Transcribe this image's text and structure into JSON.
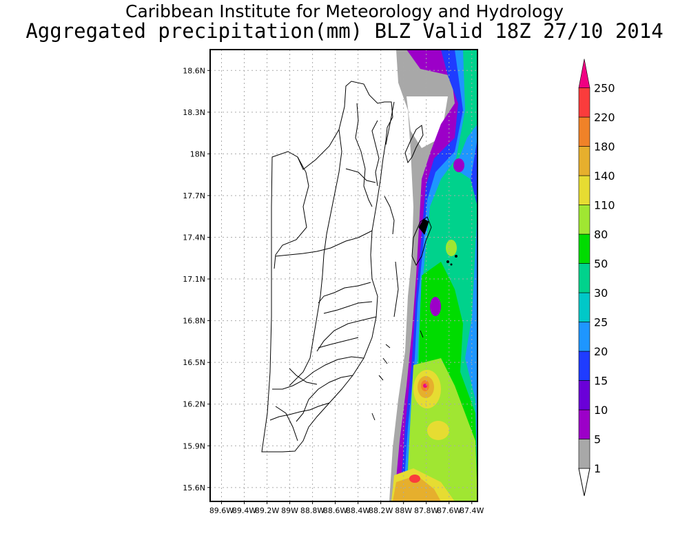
{
  "header": {
    "title": "Caribbean Institute for Meteorology and Hydrology",
    "subtitle": "Aggregated precipitation(mm) BLZ Valid 18Z 27/10 2014"
  },
  "map": {
    "region": "Belize",
    "lat_range": [
      15.5,
      18.75
    ],
    "lon_range": [
      -89.7,
      -87.35
    ],
    "lat_ticks": [
      "18.6N",
      "18.3N",
      "18N",
      "17.7N",
      "17.4N",
      "17.1N",
      "16.8N",
      "16.5N",
      "16.2N",
      "15.9N",
      "15.6N"
    ],
    "lon_ticks": [
      "89.6W",
      "89.4W",
      "89.2W",
      "89W",
      "88.8W",
      "88.6W",
      "88.4W",
      "88.2W",
      "88W",
      "87.8W",
      "87.6W",
      "87.4W"
    ],
    "grid": true
  },
  "colorbar": {
    "levels": [
      "1",
      "5",
      "10",
      "15",
      "20",
      "25",
      "30",
      "50",
      "80",
      "110",
      "140",
      "180",
      "220",
      "250"
    ],
    "colors": [
      "#a8a8a8",
      "#9c00c8",
      "#6a00d8",
      "#1f3cff",
      "#1e96ff",
      "#00c8c8",
      "#00d28c",
      "#00dc00",
      "#a0e632",
      "#e6dc32",
      "#e6af2d",
      "#f08228",
      "#fa3c3c",
      "#f00082"
    ]
  },
  "colors": {
    "gray": "#a8a8a8",
    "purple": "#9c00c8",
    "violet": "#6a00d8",
    "blue": "#1f3cff",
    "lightblue": "#1e96ff",
    "cyan": "#00c8c8",
    "teal": "#00d28c",
    "green": "#00dc00",
    "lime": "#a0e632",
    "yellow": "#e6dc32",
    "orange": "#e6af2d",
    "darkorange": "#f08228",
    "red": "#fa3c3c",
    "magenta": "#f00082"
  }
}
